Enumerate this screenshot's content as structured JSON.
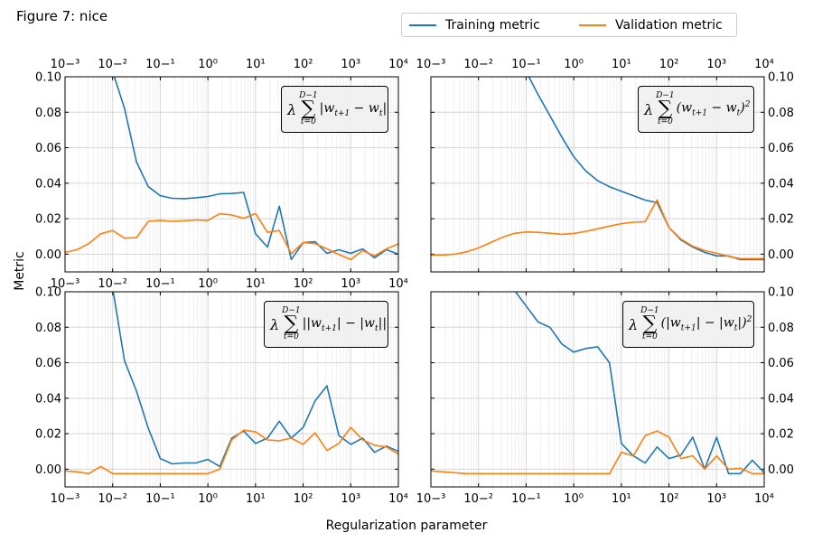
{
  "figure": {
    "title": "Figure 7: nice",
    "xlabel": "Regularization parameter",
    "ylabel": "Metric"
  },
  "legend": [
    {
      "label": "Training metric",
      "color": "#1f77b4"
    },
    {
      "label": "Validation metric",
      "color": "#ff7f0e"
    }
  ],
  "chart_data": [
    {
      "type": "line",
      "formula": {
        "sum_top": "D−1",
        "sum_bot": "t=0",
        "body": "|w<sub>t+1</sub> − w<sub>t</sub>|"
      },
      "xscale": "log",
      "xlim": [
        0.001,
        10000
      ],
      "ylim": [
        -0.01,
        0.1
      ],
      "grid": true,
      "y_axis_side": "left",
      "x_tick_labels": "top and bottom",
      "series": [
        {
          "name": "Training metric",
          "color": "#1f77b4",
          "x": [
            0.01,
            0.0178,
            0.0316,
            0.0562,
            0.1,
            0.178,
            0.316,
            0.562,
            1,
            1.78,
            3.16,
            5.62,
            10,
            17.8,
            31.6,
            56.2,
            100,
            178,
            316,
            562,
            1000,
            1780,
            3160,
            5620,
            10000
          ],
          "values": [
            0.103,
            0.082,
            0.052,
            0.038,
            0.033,
            0.0315,
            0.0313,
            0.0318,
            0.0325,
            0.034,
            0.0342,
            0.0348,
            0.0115,
            0.004,
            0.027,
            -0.003,
            0.0065,
            0.007,
            0.0005,
            0.0025,
            0.0005,
            0.003,
            -0.002,
            0.0025,
            0.0
          ]
        },
        {
          "name": "Validation metric",
          "color": "#ff7f0e",
          "x": [
            0.001,
            0.00178,
            0.00316,
            0.00562,
            0.01,
            0.0178,
            0.0316,
            0.0562,
            0.1,
            0.178,
            0.316,
            0.562,
            1,
            1.78,
            3.16,
            5.62,
            10,
            17.8,
            31.6,
            56.2,
            100,
            178,
            316,
            562,
            1000,
            1780,
            3160,
            5620,
            10000
          ],
          "values": [
            0.001,
            0.0025,
            0.006,
            0.0115,
            0.0133,
            0.009,
            0.0093,
            0.0185,
            0.019,
            0.0185,
            0.0188,
            0.0193,
            0.019,
            0.0228,
            0.0221,
            0.0202,
            0.0229,
            0.0123,
            0.0133,
            0.0003,
            0.0065,
            0.006,
            0.003,
            -0.0002,
            -0.003,
            0.002,
            -0.001,
            0.003,
            0.0058
          ]
        }
      ]
    },
    {
      "type": "line",
      "formula": {
        "sum_top": "D−1",
        "sum_bot": "t=0",
        "body": "(w<sub>t+1</sub> − w<sub>t</sub>)<sup>2</sup>"
      },
      "xscale": "log",
      "xlim": [
        0.001,
        10000
      ],
      "ylim": [
        -0.01,
        0.1
      ],
      "grid": true,
      "y_axis_side": "right",
      "x_tick_labels": "top only",
      "series": [
        {
          "name": "Training metric",
          "color": "#1f77b4",
          "x": [
            0.1,
            0.178,
            0.316,
            0.562,
            1,
            1.78,
            3.16,
            5.62,
            10,
            17.8,
            31.6,
            56.2,
            100,
            178,
            316,
            562,
            1000,
            1780,
            3160,
            5620,
            10000
          ],
          "values": [
            0.103,
            0.09,
            0.078,
            0.066,
            0.055,
            0.047,
            0.0415,
            0.038,
            0.0355,
            0.033,
            0.0305,
            0.029,
            0.015,
            0.008,
            0.004,
            0.001,
            -0.001,
            -0.001,
            -0.003,
            -0.003,
            -0.003
          ]
        },
        {
          "name": "Validation metric",
          "color": "#ff7f0e",
          "x": [
            0.001,
            0.00178,
            0.00316,
            0.00562,
            0.01,
            0.0178,
            0.0316,
            0.0562,
            0.1,
            0.178,
            0.316,
            0.562,
            1,
            1.78,
            3.16,
            5.62,
            10,
            17.8,
            31.6,
            56.2,
            100,
            178,
            316,
            562,
            1000,
            1780,
            3160,
            5620,
            10000
          ],
          "values": [
            -0.0005,
            -0.0005,
            0.0,
            0.0013,
            0.0035,
            0.0065,
            0.0095,
            0.0117,
            0.0125,
            0.0123,
            0.0118,
            0.0112,
            0.0117,
            0.0128,
            0.0143,
            0.0158,
            0.0172,
            0.018,
            0.0183,
            0.0306,
            0.015,
            0.0085,
            0.0045,
            0.002,
            0.0005,
            -0.0012,
            -0.0025,
            -0.0025,
            -0.0025
          ]
        }
      ]
    },
    {
      "type": "line",
      "formula": {
        "sum_top": "D−1",
        "sum_bot": "t=0",
        "body": "||w<sub>t+1</sub>| − |w<sub>t</sub>||"
      },
      "xscale": "log",
      "xlim": [
        0.001,
        10000
      ],
      "ylim": [
        -0.01,
        0.1
      ],
      "grid": true,
      "y_axis_side": "left",
      "x_tick_labels": "bottom only",
      "series": [
        {
          "name": "Training metric",
          "color": "#1f77b4",
          "x": [
            0.01,
            0.0178,
            0.0316,
            0.0562,
            0.1,
            0.178,
            0.316,
            0.562,
            1,
            1.78,
            3.16,
            5.62,
            10,
            17.8,
            31.6,
            56.2,
            100,
            178,
            316,
            562,
            1000,
            1780,
            3160,
            5620,
            10000
          ],
          "values": [
            0.102,
            0.061,
            0.044,
            0.023,
            0.006,
            0.003,
            0.0035,
            0.0035,
            0.0055,
            0.0015,
            0.0175,
            0.0215,
            0.0145,
            0.0175,
            0.027,
            0.0175,
            0.0235,
            0.0385,
            0.047,
            0.019,
            0.014,
            0.0175,
            0.0095,
            0.013,
            0.01
          ]
        },
        {
          "name": "Validation metric",
          "color": "#ff7f0e",
          "x": [
            0.001,
            0.00178,
            0.00316,
            0.00562,
            0.01,
            0.0178,
            0.0316,
            0.0562,
            0.1,
            0.178,
            0.316,
            0.562,
            1,
            1.78,
            3.16,
            5.62,
            10,
            17.8,
            31.6,
            56.2,
            100,
            178,
            316,
            562,
            1000,
            1780,
            3160,
            5620,
            10000
          ],
          "values": [
            -0.001,
            -0.0015,
            -0.0025,
            0.0015,
            -0.0025,
            -0.0025,
            -0.0025,
            -0.0025,
            -0.0025,
            -0.0025,
            -0.0025,
            -0.0025,
            -0.0025,
            0.0,
            0.0165,
            0.022,
            0.021,
            0.0165,
            0.016,
            0.0175,
            0.014,
            0.0205,
            0.0105,
            0.0145,
            0.0235,
            0.0165,
            0.0135,
            0.0125,
            0.0085
          ]
        }
      ]
    },
    {
      "type": "line",
      "formula": {
        "sum_top": "D−1",
        "sum_bot": "t=0",
        "body": "(|w<sub>t+1</sub>| − |w<sub>t</sub>|)<sup>2</sup>"
      },
      "xscale": "log",
      "xlim": [
        0.001,
        10000
      ],
      "ylim": [
        -0.01,
        0.1
      ],
      "grid": true,
      "y_axis_side": "right",
      "x_tick_labels": "bottom only",
      "series": [
        {
          "name": "Training metric",
          "color": "#1f77b4",
          "x": [
            0.0562,
            0.1,
            0.178,
            0.316,
            0.562,
            1,
            1.78,
            3.16,
            5.62,
            10,
            17.8,
            31.6,
            56.2,
            100,
            178,
            316,
            562,
            1000,
            1780,
            3160,
            5620,
            10000
          ],
          "values": [
            0.101,
            0.092,
            0.083,
            0.08,
            0.0705,
            0.066,
            0.068,
            0.069,
            0.06,
            0.0145,
            0.0075,
            0.0035,
            0.0125,
            0.006,
            0.008,
            0.018,
            0.0,
            0.018,
            -0.0025,
            -0.0025,
            0.005,
            -0.002
          ]
        },
        {
          "name": "Validation metric",
          "color": "#ff7f0e",
          "x": [
            0.001,
            0.00178,
            0.00316,
            0.00562,
            0.01,
            0.0178,
            0.0316,
            0.0562,
            0.1,
            0.178,
            0.316,
            0.562,
            1,
            1.78,
            3.16,
            5.62,
            10,
            17.8,
            31.6,
            56.2,
            100,
            178,
            316,
            562,
            1000,
            1780,
            3160,
            5620,
            10000
          ],
          "values": [
            -0.001,
            -0.0015,
            -0.002,
            -0.0025,
            -0.0025,
            -0.0025,
            -0.0025,
            -0.0025,
            -0.0025,
            -0.0025,
            -0.0025,
            -0.0025,
            -0.0025,
            -0.0025,
            -0.0025,
            -0.0025,
            0.0095,
            0.0075,
            0.019,
            0.0215,
            0.018,
            0.006,
            0.0075,
            0.0,
            0.0075,
            0.0,
            0.0005,
            -0.0025,
            -0.0025
          ]
        }
      ]
    }
  ]
}
